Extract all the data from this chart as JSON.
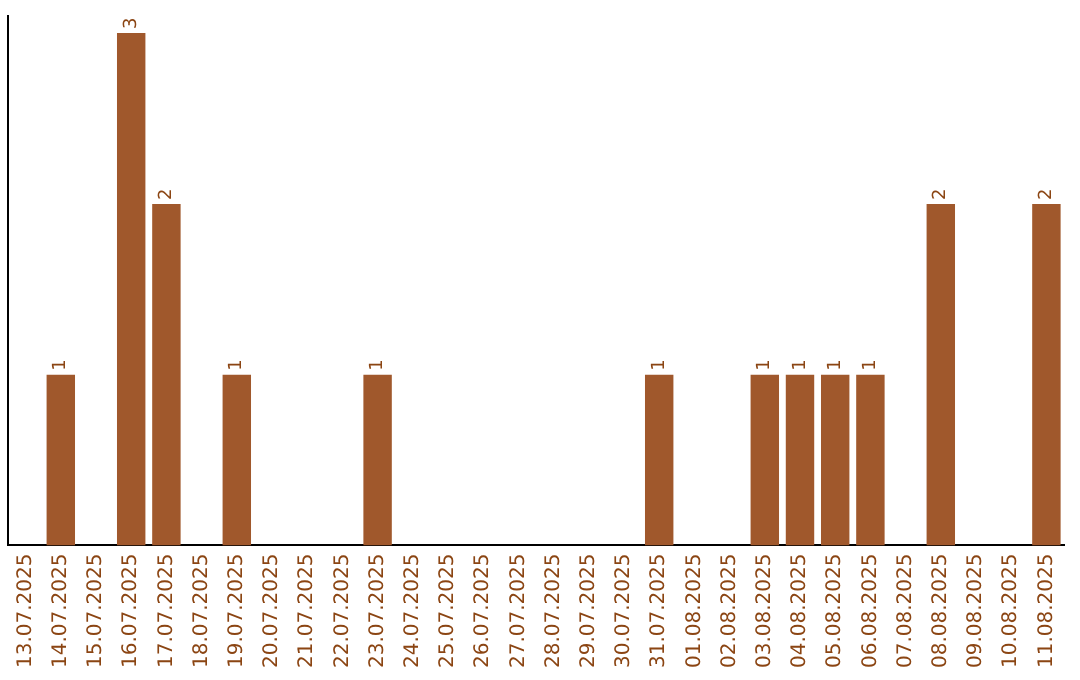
{
  "chart_data": {
    "type": "bar",
    "categories": [
      "13.07.2025",
      "14.07.2025",
      "15.07.2025",
      "16.07.2025",
      "17.07.2025",
      "18.07.2025",
      "19.07.2025",
      "20.07.2025",
      "21.07.2025",
      "22.07.2025",
      "23.07.2025",
      "24.07.2025",
      "25.07.2025",
      "26.07.2025",
      "27.07.2025",
      "28.07.2025",
      "29.07.2025",
      "30.07.2025",
      "31.07.2025",
      "01.08.2025",
      "02.08.2025",
      "03.08.2025",
      "04.08.2025",
      "05.08.2025",
      "06.08.2025",
      "07.08.2025",
      "08.08.2025",
      "09.08.2025",
      "10.08.2025",
      "11.08.2025"
    ],
    "values": [
      0,
      1,
      0,
      3,
      2,
      0,
      1,
      0,
      0,
      0,
      1,
      0,
      0,
      0,
      0,
      0,
      0,
      0,
      1,
      0,
      0,
      1,
      1,
      1,
      1,
      0,
      2,
      0,
      0,
      2
    ],
    "value_labels": [
      null,
      "1",
      null,
      "3",
      "2",
      null,
      "1",
      null,
      null,
      null,
      "1",
      null,
      null,
      null,
      null,
      null,
      null,
      null,
      "1",
      null,
      null,
      "1",
      "1",
      "1",
      "1",
      null,
      "2",
      null,
      null,
      "2"
    ],
    "color": "#a0582c",
    "ylim": [
      0,
      3.1
    ],
    "tick_labels": "x",
    "grid": false,
    "legend": false
  }
}
